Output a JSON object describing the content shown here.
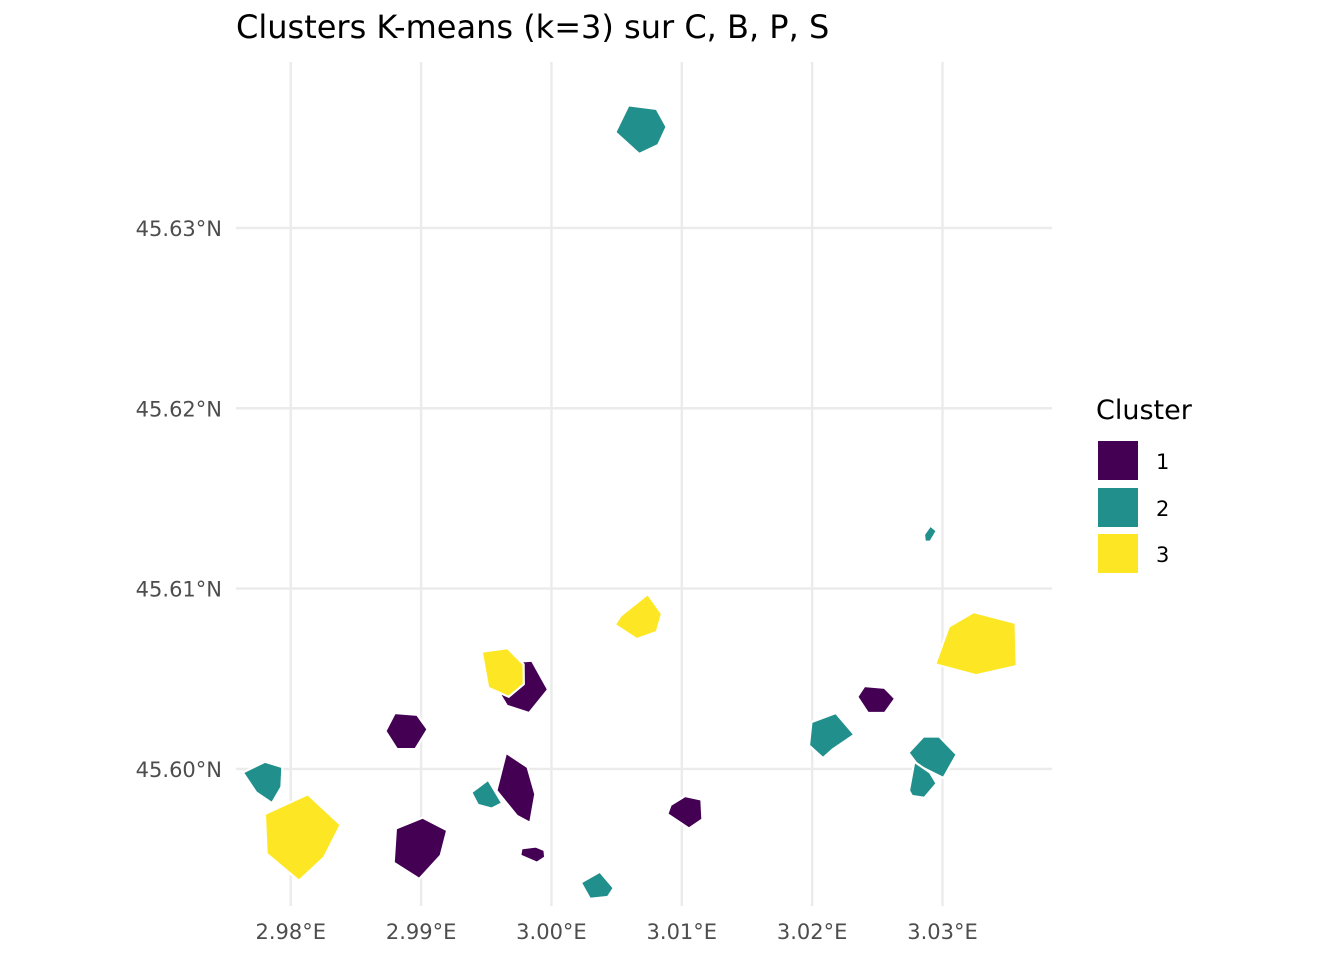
{
  "title": "Clusters K-means (k=3) sur C, B, P, S",
  "legend": {
    "title": "Cluster",
    "position": "right",
    "items": [
      {
        "label": "1",
        "color": "#440154"
      },
      {
        "label": "2",
        "color": "#21908C"
      },
      {
        "label": "3",
        "color": "#FDE725"
      }
    ]
  },
  "chart_data": {
    "type": "map",
    "x_ticks": [
      "2.98°E",
      "2.99°E",
      "3.00°E",
      "3.01°E",
      "3.02°E",
      "3.03°E"
    ],
    "y_ticks": [
      "45.63°N",
      "45.62°N",
      "45.61°N",
      "45.60°N"
    ],
    "x_tick_values": [
      2.98,
      2.99,
      3.0,
      3.01,
      3.02,
      3.03
    ],
    "y_tick_values": [
      45.63,
      45.62,
      45.61,
      45.6
    ],
    "xlim": [
      2.9758,
      3.0384
    ],
    "ylim": [
      45.5924,
      45.6392
    ],
    "grid": true,
    "parcels": [
      {
        "cluster": 2,
        "lonlat": [
          [
            3.00591,
            45.6368
          ],
          [
            3.00807,
            45.6366
          ],
          [
            3.00883,
            45.6356
          ],
          [
            3.00819,
            45.6346
          ],
          [
            3.00673,
            45.6341
          ],
          [
            3.0049,
            45.6353
          ]
        ]
      },
      {
        "cluster": 2,
        "lonlat": [
          [
            3.02858,
            45.613
          ],
          [
            3.02907,
            45.6135
          ],
          [
            3.02956,
            45.6132
          ],
          [
            3.02907,
            45.6126
          ],
          [
            3.02864,
            45.6126
          ]
        ]
      },
      {
        "cluster": 3,
        "lonlat": [
          [
            3.00531,
            45.6085
          ],
          [
            3.00739,
            45.6097
          ],
          [
            3.00848,
            45.6086
          ],
          [
            3.00808,
            45.6076
          ],
          [
            3.00654,
            45.6072
          ],
          [
            3.00485,
            45.608
          ]
        ]
      },
      {
        "cluster": 3,
        "lonlat": [
          [
            3.03049,
            45.6079
          ],
          [
            3.03239,
            45.6087
          ],
          [
            3.03561,
            45.6081
          ],
          [
            3.03569,
            45.6057
          ],
          [
            3.03257,
            45.6052
          ],
          [
            3.02944,
            45.6058
          ]
        ]
      },
      {
        "cluster": 1,
        "lonlat": [
          [
            2.99648,
            45.6059
          ],
          [
            2.99851,
            45.606
          ],
          [
            2.99974,
            45.6044
          ],
          [
            2.99829,
            45.6031
          ],
          [
            2.99658,
            45.6035
          ],
          [
            2.9955,
            45.6048
          ]
        ]
      },
      {
        "cluster": 3,
        "lonlat": [
          [
            2.99465,
            45.6065
          ],
          [
            2.99663,
            45.6067
          ],
          [
            2.99786,
            45.6058
          ],
          [
            2.99788,
            45.6047
          ],
          [
            2.99672,
            45.604
          ],
          [
            2.99515,
            45.6045
          ]
        ]
      },
      {
        "cluster": 1,
        "lonlat": [
          [
            3.02401,
            45.6046
          ],
          [
            3.02556,
            45.6045
          ],
          [
            3.02636,
            45.6039
          ],
          [
            3.02557,
            45.6031
          ],
          [
            3.02428,
            45.6031
          ],
          [
            3.02346,
            45.604
          ]
        ]
      },
      {
        "cluster": 1,
        "lonlat": [
          [
            2.98798,
            45.6031
          ],
          [
            2.9897,
            45.603
          ],
          [
            2.9905,
            45.6022
          ],
          [
            2.98956,
            45.6011
          ],
          [
            2.98814,
            45.6011
          ],
          [
            2.98726,
            45.6021
          ]
        ]
      },
      {
        "cluster": 2,
        "lonlat": [
          [
            3.01994,
            45.6026
          ],
          [
            3.02182,
            45.6031
          ],
          [
            3.02324,
            45.6019
          ],
          [
            3.02161,
            45.6011
          ],
          [
            3.02083,
            45.6006
          ],
          [
            3.01976,
            45.6013
          ]
        ]
      },
      {
        "cluster": 2,
        "lonlat": [
          [
            3.02854,
            45.6018
          ],
          [
            3.02975,
            45.6018
          ],
          [
            3.03109,
            45.6008
          ],
          [
            3.03007,
            45.5995
          ],
          [
            3.02811,
            45.6002
          ],
          [
            3.02738,
            45.6009
          ]
        ]
      },
      {
        "cluster": 2,
        "lonlat": [
          [
            2.97632,
            45.5998
          ],
          [
            2.97802,
            45.6004
          ],
          [
            2.97936,
            45.6001
          ],
          [
            2.97928,
            45.599
          ],
          [
            2.97856,
            45.5981
          ],
          [
            2.97734,
            45.5987
          ]
        ]
      },
      {
        "cluster": 2,
        "lonlat": [
          [
            3.02743,
            45.5988
          ],
          [
            3.02784,
            45.6004
          ],
          [
            3.02904,
            45.5998
          ],
          [
            3.02955,
            45.5992
          ],
          [
            3.02861,
            45.5984
          ],
          [
            3.02766,
            45.5985
          ]
        ]
      },
      {
        "cluster": 1,
        "lonlat": [
          [
            2.99651,
            45.6009
          ],
          [
            2.99817,
            45.6001
          ],
          [
            2.99876,
            45.5986
          ],
          [
            2.99837,
            45.597
          ],
          [
            2.99735,
            45.5974
          ],
          [
            2.99578,
            45.5988
          ]
        ]
      },
      {
        "cluster": 2,
        "lonlat": [
          [
            2.99385,
            45.5987
          ],
          [
            2.99515,
            45.5994
          ],
          [
            2.99622,
            45.5981
          ],
          [
            2.99541,
            45.5978
          ],
          [
            2.99436,
            45.598
          ]
        ]
      },
      {
        "cluster": 3,
        "lonlat": [
          [
            2.97802,
            45.5975
          ],
          [
            2.98131,
            45.5986
          ],
          [
            2.98383,
            45.5969
          ],
          [
            2.98257,
            45.5951
          ],
          [
            2.98063,
            45.5938
          ],
          [
            2.97815,
            45.5953
          ]
        ]
      },
      {
        "cluster": 1,
        "lonlat": [
          [
            3.00914,
            45.598
          ],
          [
            3.01026,
            45.5985
          ],
          [
            3.0115,
            45.5983
          ],
          [
            3.01158,
            45.5972
          ],
          [
            3.01055,
            45.5967
          ],
          [
            3.00889,
            45.5975
          ]
        ]
      },
      {
        "cluster": 1,
        "lonlat": [
          [
            2.98807,
            45.5967
          ],
          [
            2.99012,
            45.5973
          ],
          [
            2.992,
            45.5966
          ],
          [
            2.9915,
            45.5952
          ],
          [
            2.98986,
            45.5939
          ],
          [
            2.9879,
            45.5948
          ]
        ]
      },
      {
        "cluster": 1,
        "lonlat": [
          [
            2.9977,
            45.5956
          ],
          [
            2.9988,
            45.5957
          ],
          [
            2.99947,
            45.5955
          ],
          [
            2.99952,
            45.5951
          ],
          [
            2.99889,
            45.5948
          ],
          [
            2.9976,
            45.5952
          ]
        ]
      },
      {
        "cluster": 2,
        "lonlat": [
          [
            3.00225,
            45.5937
          ],
          [
            3.00372,
            45.5943
          ],
          [
            3.00478,
            45.5934
          ],
          [
            3.00433,
            45.5929
          ],
          [
            3.00295,
            45.5928
          ]
        ]
      }
    ]
  }
}
